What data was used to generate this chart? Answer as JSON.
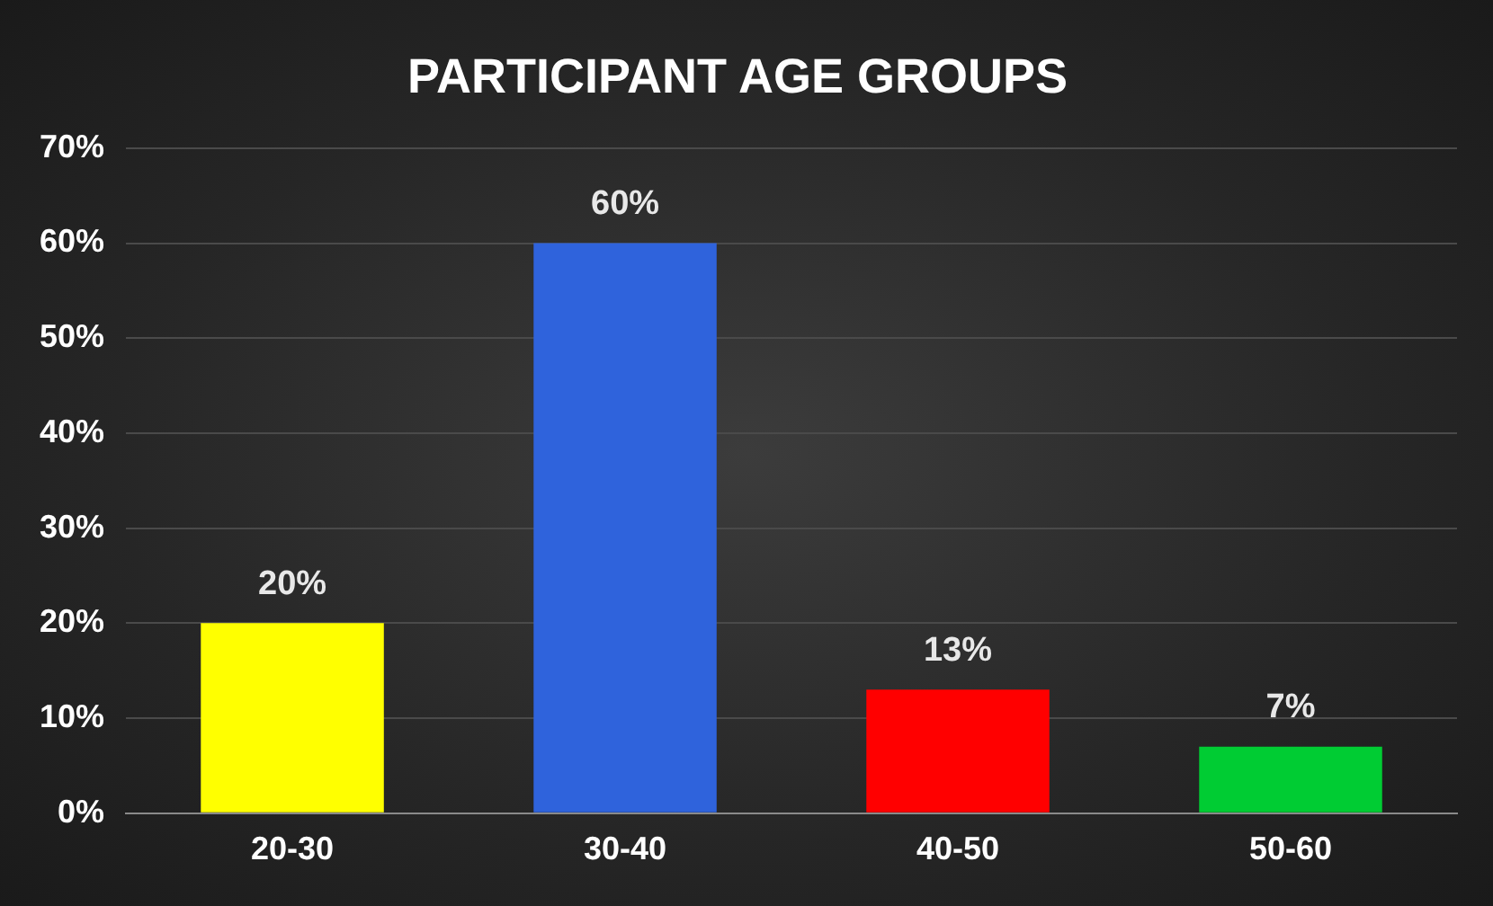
{
  "chart_data": {
    "type": "bar",
    "title": "PARTICIPANT AGE GROUPS",
    "categories": [
      "20-30",
      "30-40",
      "40-50",
      "50-60"
    ],
    "values": [
      20,
      60,
      13,
      7
    ],
    "colors": [
      "#ffff00",
      "#2f63dc",
      "#ff0000",
      "#00cc33"
    ],
    "value_labels": [
      "20%",
      "60%",
      "13%",
      "7%"
    ],
    "ylim": [
      0,
      70
    ],
    "yticks": [
      {
        "value": 0,
        "label": "0%"
      },
      {
        "value": 10,
        "label": "10%"
      },
      {
        "value": 20,
        "label": "20%"
      },
      {
        "value": 30,
        "label": "30%"
      },
      {
        "value": 40,
        "label": "40%"
      },
      {
        "value": 50,
        "label": "50%"
      },
      {
        "value": 60,
        "label": "60%"
      },
      {
        "value": 70,
        "label": "70%"
      }
    ],
    "grid": "y",
    "legend": false
  }
}
